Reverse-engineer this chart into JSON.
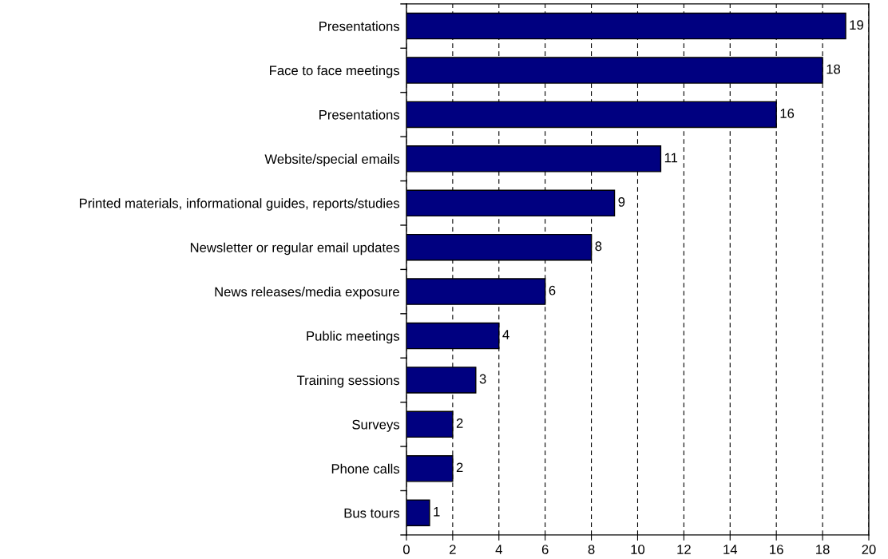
{
  "chart_data": {
    "type": "bar",
    "orientation": "horizontal",
    "categories": [
      "Presentations",
      "Face to face meetings",
      "Presentations",
      "Website/special emails",
      "Printed materials, informational guides, reports/studies",
      "Newsletter or regular email updates",
      "News releases/media exposure",
      "Public meetings",
      "Training sessions",
      "Surveys",
      "Phone calls",
      "Bus tours"
    ],
    "values": [
      19,
      18,
      16,
      11,
      9,
      8,
      6,
      4,
      3,
      2,
      2,
      1
    ],
    "color": "#000080",
    "xlim": [
      0,
      20
    ],
    "xticks": [
      0,
      2,
      4,
      6,
      8,
      10,
      12,
      14,
      16,
      18,
      20
    ],
    "grid": "x",
    "data_labels": true
  }
}
